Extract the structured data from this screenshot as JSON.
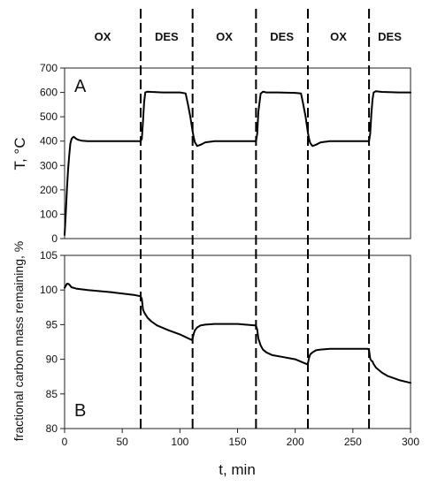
{
  "chart_data": [
    {
      "type": "line",
      "panel": "A",
      "ylabel": "T, °C",
      "xlim": [
        0,
        300
      ],
      "ylim": [
        0,
        700
      ],
      "yticks": [
        0,
        100,
        200,
        300,
        400,
        500,
        600,
        700
      ],
      "series": [
        {
          "x": [
            0,
            1,
            2,
            3,
            4,
            5,
            6,
            7,
            8,
            9,
            10,
            12,
            15,
            20,
            30,
            50,
            66,
            67,
            68,
            69,
            70,
            72,
            75,
            85,
            100,
            105,
            107,
            109,
            111,
            112,
            113,
            115,
            118,
            122,
            130,
            150,
            166,
            167,
            168,
            170,
            172,
            175,
            185,
            200,
            205,
            207,
            209,
            211,
            212,
            213,
            215,
            218,
            222,
            230,
            250,
            264,
            265,
            266,
            267,
            268,
            270,
            275,
            290,
            300
          ],
          "y": [
            15,
            100,
            200,
            280,
            340,
            390,
            408,
            415,
            418,
            414,
            410,
            405,
            402,
            400,
            400,
            400,
            400,
            410,
            480,
            560,
            600,
            603,
            602,
            600,
            600,
            596,
            550,
            500,
            440,
            415,
            395,
            380,
            385,
            395,
            400,
            400,
            400,
            430,
            520,
            595,
            603,
            600,
            600,
            598,
            596,
            550,
            500,
            435,
            410,
            392,
            380,
            385,
            395,
            400,
            400,
            400,
            430,
            510,
            570,
            600,
            605,
            602,
            600,
            600
          ]
        }
      ]
    },
    {
      "type": "line",
      "panel": "B",
      "ylabel": "fractional carbon mass remaining, %",
      "xlabel": "t, min",
      "xlim": [
        0,
        300
      ],
      "ylim": [
        80,
        105
      ],
      "yticks": [
        80,
        85,
        90,
        95,
        100,
        105
      ],
      "xticks": [
        0,
        50,
        100,
        150,
        200,
        250,
        300
      ],
      "series": [
        {
          "x": [
            0,
            1,
            2,
            3,
            4,
            5,
            6,
            8,
            10,
            20,
            40,
            60,
            66,
            67,
            68,
            69,
            70,
            72,
            75,
            80,
            90,
            100,
            110,
            111,
            112,
            113,
            115,
            118,
            122,
            130,
            150,
            165,
            166,
            167,
            168,
            170,
            172,
            175,
            180,
            190,
            200,
            210,
            211,
            212,
            213,
            215,
            218,
            222,
            230,
            250,
            263,
            264,
            265,
            266,
            267,
            268,
            270,
            275,
            280,
            290,
            300
          ],
          "y": [
            100.3,
            100.6,
            100.9,
            100.9,
            100.8,
            100.6,
            100.4,
            100.3,
            100.2,
            100.0,
            99.7,
            99.3,
            99.1,
            98.7,
            97.2,
            96.8,
            96.5,
            96.0,
            95.5,
            94.9,
            94.2,
            93.6,
            92.8,
            93.0,
            93.7,
            94.2,
            94.6,
            94.9,
            95.0,
            95.1,
            95.1,
            94.9,
            94.8,
            94.3,
            93.0,
            92.0,
            91.4,
            91.0,
            90.6,
            90.3,
            90.0,
            89.3,
            89.4,
            90.2,
            90.7,
            91.0,
            91.3,
            91.4,
            91.5,
            91.5,
            91.5,
            91.3,
            90.1,
            89.8,
            89.7,
            89.3,
            88.8,
            88.1,
            87.6,
            87.0,
            86.6
          ]
        }
      ]
    }
  ],
  "phases": {
    "boundaries": [
      66,
      111,
      166,
      211,
      264
    ],
    "labels": [
      "OX",
      "DES",
      "OX",
      "DES",
      "OX",
      "DES"
    ]
  }
}
